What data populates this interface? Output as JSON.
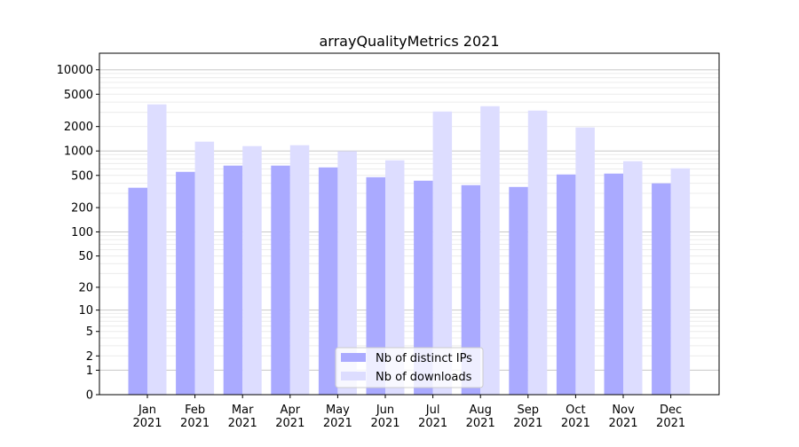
{
  "chart_data": {
    "type": "bar",
    "title": "arrayQualityMetrics 2021",
    "xlabel": "",
    "ylabel": "",
    "yscale": "log(1+x)",
    "ylim": [
      0,
      16000
    ],
    "yticks": [
      0,
      1,
      2,
      5,
      10,
      20,
      50,
      100,
      200,
      500,
      1000,
      2000,
      5000,
      10000
    ],
    "grid": true,
    "legend_position": "bottom-center",
    "categories": [
      "Jan\n2021",
      "Feb\n2021",
      "Mar\n2021",
      "Apr\n2021",
      "May\n2021",
      "Jun\n2021",
      "Jul\n2021",
      "Aug\n2021",
      "Sep\n2021",
      "Oct\n2021",
      "Nov\n2021",
      "Dec\n2021"
    ],
    "series": [
      {
        "name": "Nb of distinct IPs",
        "color": "#aaaaff",
        "values": [
          352,
          553,
          660,
          660,
          627,
          475,
          430,
          379,
          360,
          513,
          526,
          399
        ]
      },
      {
        "name": "Nb of downloads",
        "color": "#ddddff",
        "values": [
          3748,
          1303,
          1148,
          1178,
          994,
          767,
          3063,
          3563,
          3143,
          1949,
          748,
          611
        ]
      }
    ]
  }
}
